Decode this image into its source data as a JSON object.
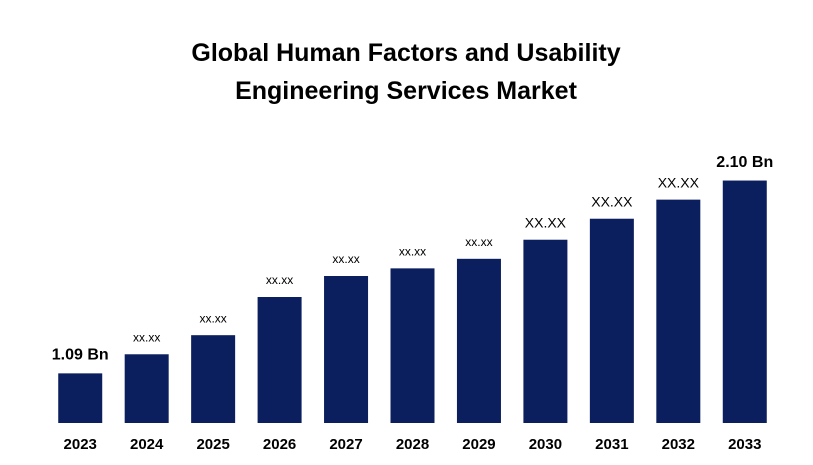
{
  "chart_data": {
    "type": "bar",
    "title": "Global Human Factors and Usability Engineering Services Market",
    "categories": [
      "2023",
      "2024",
      "2025",
      "2026",
      "2027",
      "2028",
      "2029",
      "2030",
      "2031",
      "2032",
      "2033"
    ],
    "values": [
      1.09,
      1.19,
      1.29,
      1.49,
      1.6,
      1.64,
      1.69,
      1.79,
      1.9,
      2.0,
      2.1
    ],
    "value_labels": [
      "1.09 Bn",
      "xx.xx",
      "xx.xx",
      "xx.xx",
      "xx.xx",
      "xx.xx",
      "xx.xx",
      "XX.XX",
      "XX.XX",
      "XX.XX",
      "2.10 Bn"
    ],
    "color": "#0b1f5e",
    "ylim": [
      0.83,
      2.26
    ]
  }
}
